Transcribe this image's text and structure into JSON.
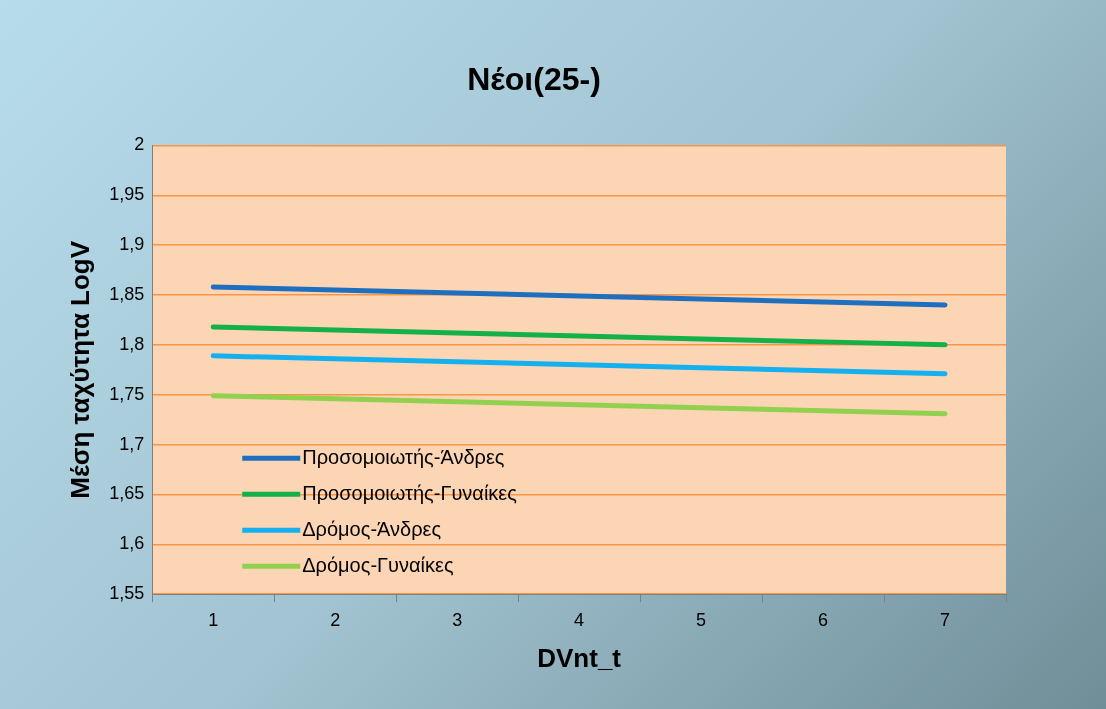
{
  "chart_data": {
    "type": "line",
    "title": "Νέοι(25-)",
    "xlabel": "DVnt_t",
    "ylabel": "Μέση ταχύτητα LogV",
    "categories": [
      "1",
      "2",
      "3",
      "4",
      "5",
      "6",
      "7"
    ],
    "series": [
      {
        "name": "Προσομοιωτής-Άνδρες",
        "color": "#1f6fc0",
        "values": [
          1.858,
          1.855,
          1.852,
          1.849,
          1.846,
          1.843,
          1.84
        ]
      },
      {
        "name": "Προσομοιωτής-Γυναίκες",
        "color": "#14b04a",
        "values": [
          1.818,
          1.815,
          1.812,
          1.809,
          1.806,
          1.803,
          1.8
        ]
      },
      {
        "name": "Δρόμος-Άνδρες",
        "color": "#14b0f0",
        "values": [
          1.789,
          1.786,
          1.783,
          1.78,
          1.777,
          1.774,
          1.771
        ]
      },
      {
        "name": "Δρόμος-Γυναίκες",
        "color": "#92d050",
        "values": [
          1.749,
          1.746,
          1.743,
          1.74,
          1.737,
          1.734,
          1.731
        ]
      }
    ],
    "ylim": [
      1.55,
      2
    ],
    "yticks": [
      {
        "value": 1.55,
        "label": "1,55"
      },
      {
        "value": 1.6,
        "label": "1,6"
      },
      {
        "value": 1.65,
        "label": "1,65"
      },
      {
        "value": 1.7,
        "label": "1,7"
      },
      {
        "value": 1.75,
        "label": "1,75"
      },
      {
        "value": 1.8,
        "label": "1,8"
      },
      {
        "value": 1.85,
        "label": "1,85"
      },
      {
        "value": 1.9,
        "label": "1,9"
      },
      {
        "value": 1.95,
        "label": "1,95"
      },
      {
        "value": 2,
        "label": "2"
      }
    ],
    "grid": "y",
    "legend": "bottom left",
    "marker": "none",
    "line_style": "solid"
  }
}
